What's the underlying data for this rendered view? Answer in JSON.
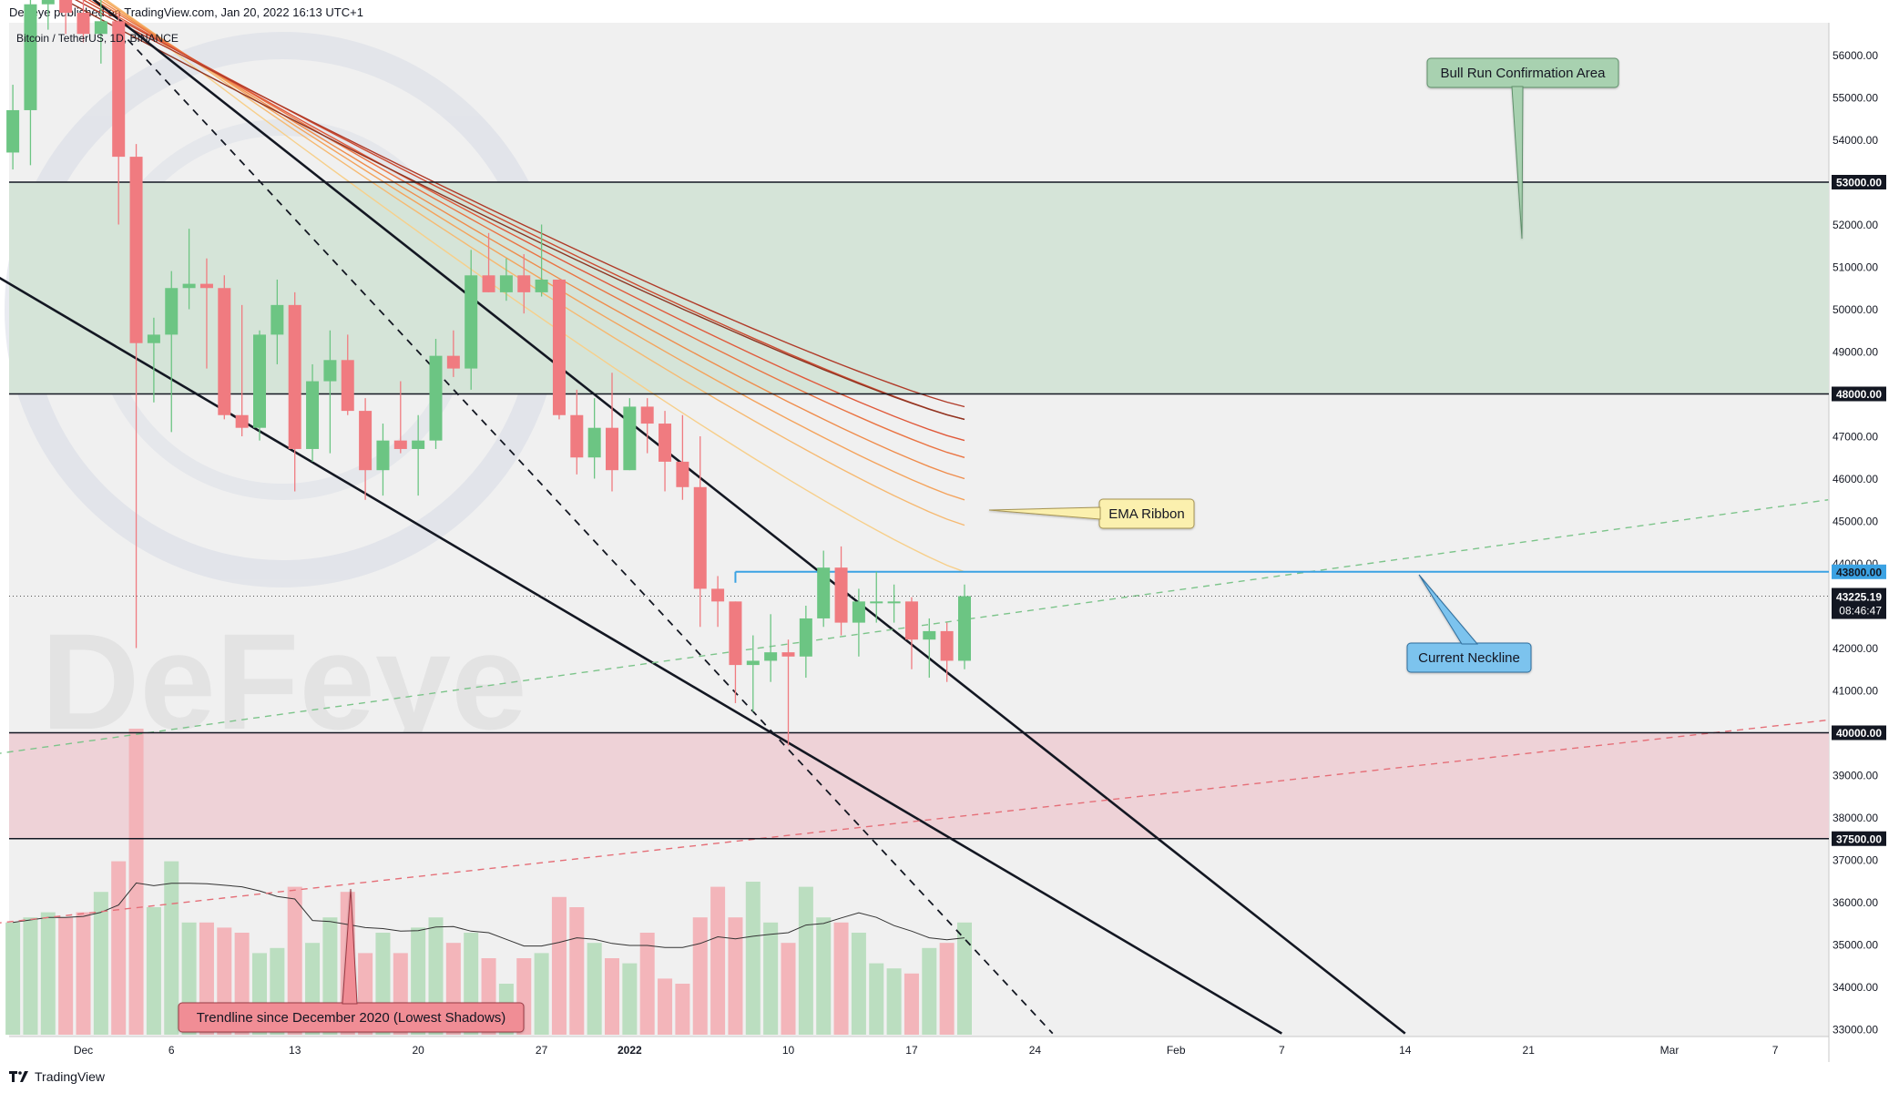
{
  "header": {
    "published": "DeFeye published on TradingView.com, Jan 20, 2022 16:13 UTC+1"
  },
  "symbol": {
    "label": "Bitcoin / TetherUS, 1D, BINANCE"
  },
  "watermark": {
    "text": "DeFeye"
  },
  "footer": {
    "brand": "TradingView"
  },
  "colors": {
    "bull": "#6cc583",
    "bear": "#f07b80",
    "bull_zone": "#d5e4d8",
    "bear_zone": "#eed2d7",
    "neckline": "#3ba2e3",
    "chart_bg": "#f0f0f0"
  },
  "annotations": {
    "bull_run": "Bull Run Confirmation Area",
    "ema_ribbon": "EMA Ribbon",
    "neckline": "Current Neckline",
    "trendline": "Trendline since December 2020 (Lowest Shadows)"
  },
  "chart_data": {
    "type": "candlestick",
    "title": "Bitcoin / TetherUS, 1D, BINANCE",
    "ylim": [
      32800,
      57000
    ],
    "price_axis_ticks": [
      33000,
      34000,
      35000,
      36000,
      37000,
      38000,
      39000,
      40000,
      41000,
      42000,
      43000,
      44000,
      45000,
      46000,
      47000,
      48000,
      49000,
      50000,
      51000,
      52000,
      53000,
      54000,
      55000,
      56000
    ],
    "price_axis_tick_labels": [
      "33000.00",
      "34000.00",
      "35000.00",
      "36000.00",
      "37000.00",
      "38000.00",
      "39000.00",
      "40000.00",
      "41000.00",
      "42000.00",
      "43000.00",
      "44000.00",
      "45000.00",
      "46000.00",
      "47000.00",
      "48000.00",
      "49000.00",
      "50000.00",
      "51000.00",
      "52000.00",
      "53000.00",
      "54000.00",
      "55000.00",
      "56000.00"
    ],
    "time_axis_labels": [
      {
        "label": "Dec",
        "date": "2021-12-01"
      },
      {
        "label": "6",
        "date": "2021-12-06"
      },
      {
        "label": "13",
        "date": "2021-12-13"
      },
      {
        "label": "20",
        "date": "2021-12-20"
      },
      {
        "label": "27",
        "date": "2021-12-27"
      },
      {
        "label": "2022",
        "date": "2022-01-01"
      },
      {
        "label": "10",
        "date": "2022-01-10"
      },
      {
        "label": "17",
        "date": "2022-01-17"
      },
      {
        "label": "24",
        "date": "2022-01-24"
      },
      {
        "label": "Feb",
        "date": "2022-02-01"
      },
      {
        "label": "7",
        "date": "2022-02-07"
      },
      {
        "label": "14",
        "date": "2022-02-14"
      },
      {
        "label": "21",
        "date": "2022-02-21"
      },
      {
        "label": "Mar",
        "date": "2022-03-01"
      },
      {
        "label": "7",
        "date": "2022-03-07"
      }
    ],
    "candles": [
      {
        "date": "2021-11-27",
        "o": 53700,
        "h": 55300,
        "l": 53300,
        "c": 54700
      },
      {
        "date": "2021-11-28",
        "o": 54700,
        "h": 57500,
        "l": 53400,
        "c": 57200
      },
      {
        "date": "2021-11-29",
        "o": 57200,
        "h": 58000,
        "l": 56600,
        "c": 57400
      },
      {
        "date": "2021-11-30",
        "o": 57400,
        "h": 59200,
        "l": 56500,
        "c": 57000
      },
      {
        "date": "2021-12-01",
        "o": 57000,
        "h": 59000,
        "l": 56300,
        "c": 56500
      },
      {
        "date": "2021-12-02",
        "o": 56500,
        "h": 57600,
        "l": 55800,
        "c": 56800
      },
      {
        "date": "2021-12-03",
        "o": 56800,
        "h": 57000,
        "l": 52000,
        "c": 53600
      },
      {
        "date": "2021-12-04",
        "o": 53600,
        "h": 53900,
        "l": 42000,
        "c": 49200
      },
      {
        "date": "2021-12-05",
        "o": 49200,
        "h": 49800,
        "l": 47800,
        "c": 49400
      },
      {
        "date": "2021-12-06",
        "o": 49400,
        "h": 50900,
        "l": 47100,
        "c": 50500
      },
      {
        "date": "2021-12-07",
        "o": 50500,
        "h": 51900,
        "l": 50000,
        "c": 50600
      },
      {
        "date": "2021-12-08",
        "o": 50600,
        "h": 51200,
        "l": 48600,
        "c": 50500
      },
      {
        "date": "2021-12-09",
        "o": 50500,
        "h": 50800,
        "l": 47400,
        "c": 47500
      },
      {
        "date": "2021-12-10",
        "o": 47500,
        "h": 50100,
        "l": 47000,
        "c": 47200
      },
      {
        "date": "2021-12-11",
        "o": 47200,
        "h": 49500,
        "l": 46900,
        "c": 49400
      },
      {
        "date": "2021-12-12",
        "o": 49400,
        "h": 50700,
        "l": 48700,
        "c": 50100
      },
      {
        "date": "2021-12-13",
        "o": 50100,
        "h": 50400,
        "l": 45700,
        "c": 46700
      },
      {
        "date": "2021-12-14",
        "o": 46700,
        "h": 48700,
        "l": 46400,
        "c": 48300
      },
      {
        "date": "2021-12-15",
        "o": 48300,
        "h": 49500,
        "l": 46600,
        "c": 48800
      },
      {
        "date": "2021-12-16",
        "o": 48800,
        "h": 49400,
        "l": 47500,
        "c": 47600
      },
      {
        "date": "2021-12-17",
        "o": 47600,
        "h": 47900,
        "l": 45500,
        "c": 46200
      },
      {
        "date": "2021-12-18",
        "o": 46200,
        "h": 47300,
        "l": 45600,
        "c": 46900
      },
      {
        "date": "2021-12-19",
        "o": 46900,
        "h": 48300,
        "l": 46600,
        "c": 46700
      },
      {
        "date": "2021-12-20",
        "o": 46700,
        "h": 47500,
        "l": 45600,
        "c": 46900
      },
      {
        "date": "2021-12-21",
        "o": 46900,
        "h": 49300,
        "l": 46700,
        "c": 48900
      },
      {
        "date": "2021-12-22",
        "o": 48900,
        "h": 49500,
        "l": 48400,
        "c": 48600
      },
      {
        "date": "2021-12-23",
        "o": 48600,
        "h": 51400,
        "l": 48100,
        "c": 50800
      },
      {
        "date": "2021-12-24",
        "o": 50800,
        "h": 51800,
        "l": 50400,
        "c": 50400
      },
      {
        "date": "2021-12-25",
        "o": 50400,
        "h": 51200,
        "l": 50200,
        "c": 50800
      },
      {
        "date": "2021-12-26",
        "o": 50800,
        "h": 51300,
        "l": 49900,
        "c": 50400
      },
      {
        "date": "2021-12-27",
        "o": 50400,
        "h": 52000,
        "l": 50300,
        "c": 50700
      },
      {
        "date": "2021-12-28",
        "o": 50700,
        "h": 50700,
        "l": 47400,
        "c": 47500
      },
      {
        "date": "2021-12-29",
        "o": 47500,
        "h": 48100,
        "l": 46100,
        "c": 46500
      },
      {
        "date": "2021-12-30",
        "o": 46500,
        "h": 47900,
        "l": 46000,
        "c": 47200
      },
      {
        "date": "2021-12-31",
        "o": 47200,
        "h": 48500,
        "l": 45700,
        "c": 46200
      },
      {
        "date": "2022-01-01",
        "o": 46200,
        "h": 47900,
        "l": 46200,
        "c": 47700
      },
      {
        "date": "2022-01-02",
        "o": 47700,
        "h": 47900,
        "l": 46600,
        "c": 47300
      },
      {
        "date": "2022-01-03",
        "o": 47300,
        "h": 47600,
        "l": 45700,
        "c": 46400
      },
      {
        "date": "2022-01-04",
        "o": 46400,
        "h": 47500,
        "l": 45500,
        "c": 45800
      },
      {
        "date": "2022-01-05",
        "o": 45800,
        "h": 47000,
        "l": 42500,
        "c": 43400
      },
      {
        "date": "2022-01-06",
        "o": 43400,
        "h": 43700,
        "l": 42500,
        "c": 43100
      },
      {
        "date": "2022-01-07",
        "o": 43100,
        "h": 43100,
        "l": 40700,
        "c": 41600
      },
      {
        "date": "2022-01-08",
        "o": 41600,
        "h": 42300,
        "l": 40500,
        "c": 41700
      },
      {
        "date": "2022-01-09",
        "o": 41700,
        "h": 42800,
        "l": 41200,
        "c": 41900
      },
      {
        "date": "2022-01-10",
        "o": 41900,
        "h": 42200,
        "l": 39700,
        "c": 41800
      },
      {
        "date": "2022-01-11",
        "o": 41800,
        "h": 43000,
        "l": 41300,
        "c": 42700
      },
      {
        "date": "2022-01-12",
        "o": 42700,
        "h": 44300,
        "l": 42500,
        "c": 43900
      },
      {
        "date": "2022-01-13",
        "o": 43900,
        "h": 44400,
        "l": 42300,
        "c": 42600
      },
      {
        "date": "2022-01-14",
        "o": 42600,
        "h": 43400,
        "l": 41800,
        "c": 43100
      },
      {
        "date": "2022-01-15",
        "o": 43100,
        "h": 43800,
        "l": 42600,
        "c": 43100
      },
      {
        "date": "2022-01-16",
        "o": 43100,
        "h": 43500,
        "l": 42600,
        "c": 43100
      },
      {
        "date": "2022-01-17",
        "o": 43100,
        "h": 43200,
        "l": 41500,
        "c": 42200
      },
      {
        "date": "2022-01-18",
        "o": 42200,
        "h": 42700,
        "l": 41300,
        "c": 42400
      },
      {
        "date": "2022-01-19",
        "o": 42400,
        "h": 42600,
        "l": 41200,
        "c": 41700
      },
      {
        "date": "2022-01-20",
        "o": 41700,
        "h": 43500,
        "l": 41500,
        "c": 43225.19
      }
    ],
    "volume": [
      0.22,
      0.23,
      0.24,
      0.23,
      0.24,
      0.28,
      0.34,
      0.6,
      0.25,
      0.34,
      0.22,
      0.22,
      0.21,
      0.2,
      0.16,
      0.17,
      0.29,
      0.18,
      0.23,
      0.28,
      0.16,
      0.2,
      0.16,
      0.21,
      0.23,
      0.18,
      0.2,
      0.15,
      0.1,
      0.15,
      0.16,
      0.27,
      0.25,
      0.18,
      0.15,
      0.14,
      0.2,
      0.11,
      0.1,
      0.23,
      0.29,
      0.23,
      0.3,
      0.22,
      0.18,
      0.29,
      0.23,
      0.22,
      0.2,
      0.14,
      0.13,
      0.12,
      0.17,
      0.18,
      0.22
    ],
    "horizontal_levels": [
      {
        "price": 53000,
        "label": "53000.00"
      },
      {
        "price": 48000,
        "label": "48000.00"
      },
      {
        "price": 40000,
        "label": "40000.00"
      },
      {
        "price": 37500,
        "label": "37500.00"
      }
    ],
    "zones": [
      {
        "type": "bullish",
        "from": 48000,
        "to": 53000
      },
      {
        "type": "bearish",
        "from": 37500,
        "to": 40000
      }
    ],
    "neckline": {
      "price": 43800,
      "label": "43800.00",
      "start_date": "2022-01-07"
    },
    "last_price": {
      "price": 43225.19,
      "label": "43225.19",
      "countdown": "08:46:47"
    },
    "trendlines": [
      {
        "style": "solid",
        "from": {
          "date": "2021-11-26",
          "price": 50800
        },
        "to": {
          "date": "2022-02-07",
          "price": 32900
        }
      },
      {
        "style": "solid",
        "from": {
          "date": "2021-12-01",
          "price": 57500
        },
        "to": {
          "date": "2022-02-14",
          "price": 32900
        }
      },
      {
        "style": "dashed",
        "from": {
          "date": "2021-12-03",
          "price": 56600
        },
        "to": {
          "date": "2022-01-25",
          "price": 32900
        }
      },
      {
        "style": "dashed-green",
        "from": {
          "date": "2021-11-26",
          "price": 39500
        },
        "to": {
          "date": "2022-03-10",
          "price": 45500
        }
      },
      {
        "style": "dashed-red",
        "from": {
          "date": "2021-11-26",
          "price": 35500
        },
        "to": {
          "date": "2022-03-10",
          "price": 40300
        }
      }
    ],
    "ema_ribbon": {
      "colors": [
        "#f7cf8a",
        "#f6b971",
        "#f4a35c",
        "#ef8c4c",
        "#ea7443",
        "#e0593a",
        "#cc4a30",
        "#b03a28",
        "#8e3422"
      ],
      "end_prices": [
        43800,
        44900,
        45500,
        46000,
        46500,
        46900,
        47400,
        47700,
        47400
      ],
      "offsets_start": [
        0,
        400,
        800,
        1200,
        1600,
        2000,
        2400,
        2800,
        3200
      ]
    }
  }
}
